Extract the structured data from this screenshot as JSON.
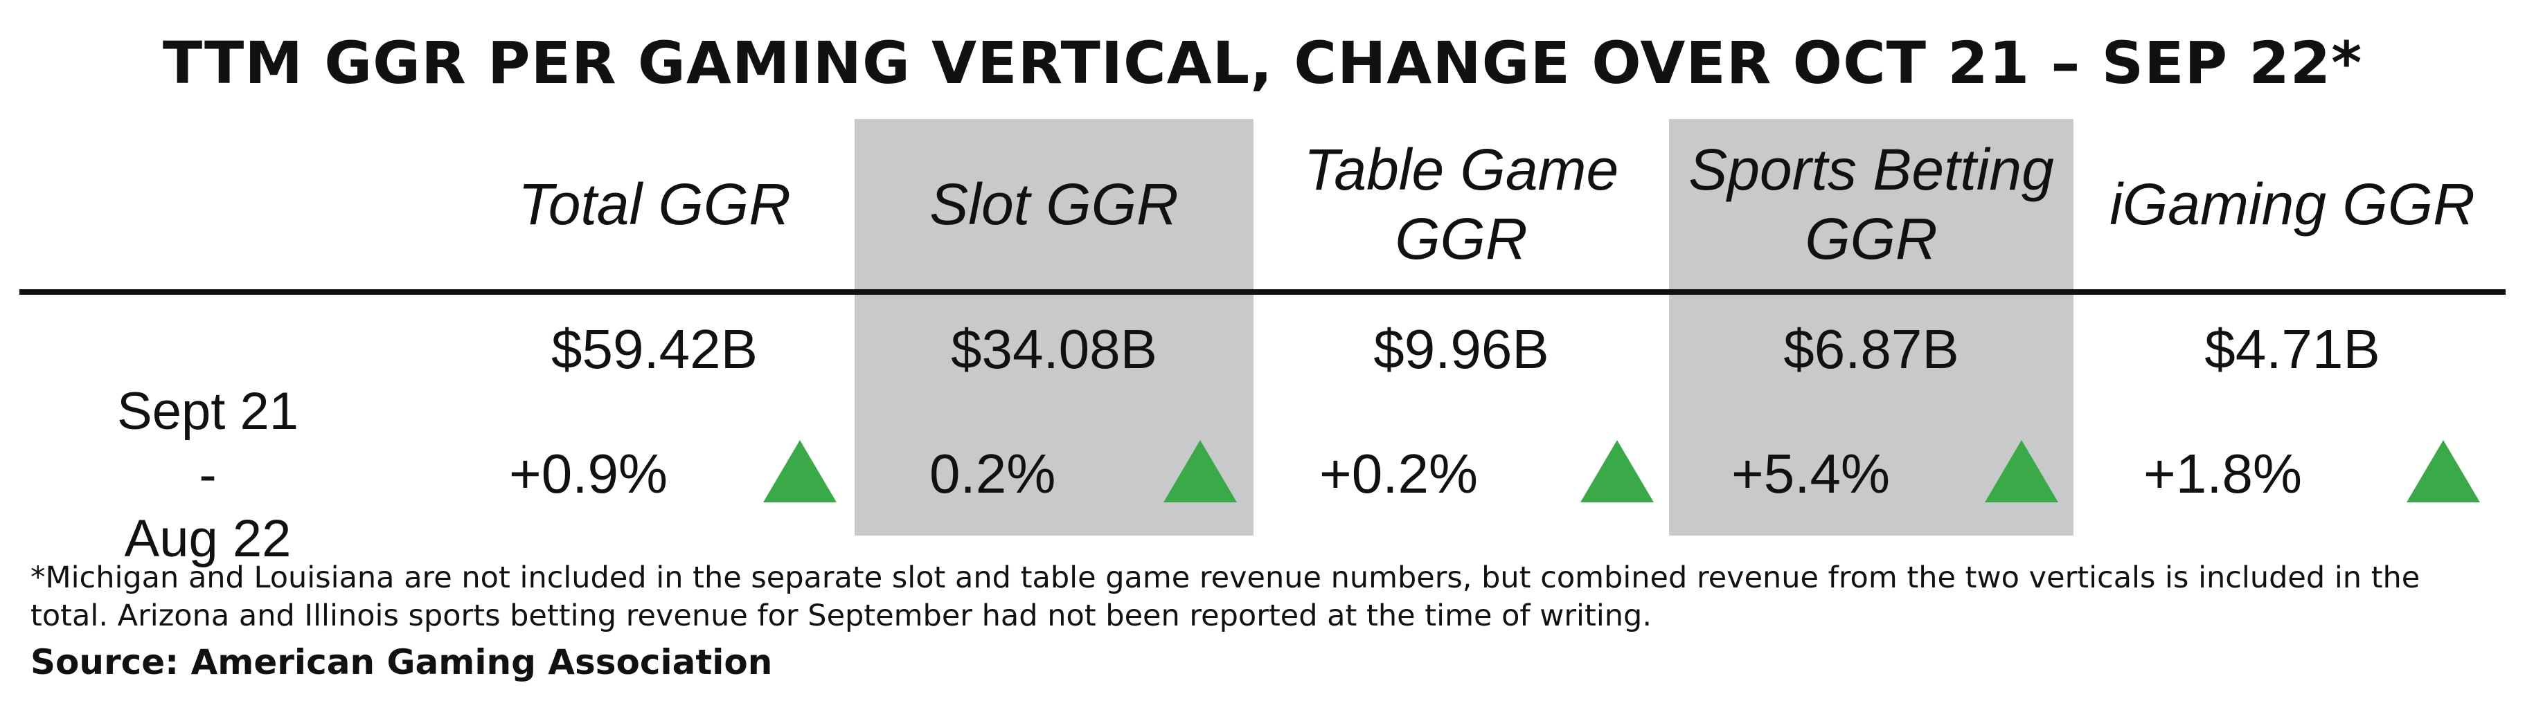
{
  "chart_data": {
    "type": "table",
    "title": "TTM GGR PER GAMING VERTICAL, CHANGE OVER OCT 21 – SEP 22*",
    "columns": [
      "Total GGR",
      "Slot GGR",
      "Table Game GGR",
      "Sports Betting GGR",
      "iGaming GGR"
    ],
    "column_lines": [
      [
        "Total GGR"
      ],
      [
        "Slot GGR"
      ],
      [
        "Table Game",
        "GGR"
      ],
      [
        "Sports Betting",
        "GGR"
      ],
      [
        "iGaming GGR"
      ]
    ],
    "totals": [
      "$59.42B",
      "$34.08B",
      "$9.96B",
      "$6.87B",
      "$4.71B"
    ],
    "row_label_lines": [
      "Sept 21 -",
      "Aug 22"
    ],
    "changes": [
      "+0.9%",
      "0.2%",
      "+0.2%",
      "+5.4%",
      "+1.8%"
    ],
    "change_values": [
      0.9,
      0.2,
      0.2,
      5.4,
      1.8
    ],
    "trend": [
      "up",
      "up",
      "up",
      "up",
      "up"
    ],
    "highlighted_columns": [
      1,
      3
    ],
    "footnote": "*Michigan and Louisiana are not included in the separate slot and table game revenue numbers, but combined revenue from the two verticals is included in the total. Arizona and Illinois sports betting revenue for September had not been reported at the time of writing.",
    "source": "Source: American Gaming Association"
  },
  "colors": {
    "highlight": "#c8c9cb",
    "arrow_up": "#3aaa48",
    "text": "#111111"
  },
  "icons": {
    "trend_up": "triangle-up-icon"
  }
}
